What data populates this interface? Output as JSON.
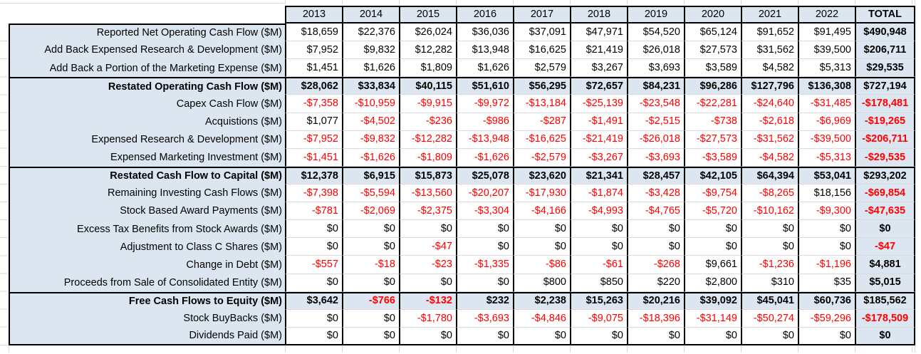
{
  "colors": {
    "accent_fill": "#DCE6F1",
    "negative_text": "#FF0000",
    "border": "#000000",
    "gridline": "#D9D9D9"
  },
  "table": {
    "columns": [
      "2013",
      "2014",
      "2015",
      "2016",
      "2017",
      "2018",
      "2019",
      "2020",
      "2021",
      "2022",
      "TOTAL"
    ],
    "rows": [
      {
        "label": "Reported Net Operating Cash Flow ($M)",
        "bold": false,
        "values": [
          "$18,659",
          "$22,376",
          "$26,024",
          "$36,036",
          "$37,091",
          "$47,971",
          "$54,520",
          "$65,124",
          "$91,652",
          "$91,495",
          "$490,948"
        ]
      },
      {
        "label": "Add Back Expensed Research & Development ($M)",
        "bold": false,
        "values": [
          "$7,952",
          "$9,832",
          "$12,282",
          "$13,948",
          "$16,625",
          "$21,419",
          "$26,018",
          "$27,573",
          "$31,562",
          "$39,500",
          "$206,711"
        ]
      },
      {
        "label": "Add Back a Portion of the Marketing Expense ($M)",
        "bold": false,
        "values": [
          "$1,451",
          "$1,626",
          "$1,809",
          "$1,626",
          "$2,579",
          "$3,267",
          "$3,693",
          "$3,589",
          "$4,582",
          "$5,313",
          "$29,535"
        ]
      },
      {
        "label": "Restated Operating Cash Flow ($M)",
        "bold": true,
        "values": [
          "$28,062",
          "$33,834",
          "$40,115",
          "$51,610",
          "$56,295",
          "$72,657",
          "$84,231",
          "$96,286",
          "$127,796",
          "$136,308",
          "$727,194"
        ]
      },
      {
        "label": "Capex Cash Flow ($M)",
        "bold": false,
        "values": [
          "-$7,358",
          "-$10,959",
          "-$9,915",
          "-$9,972",
          "-$13,184",
          "-$25,139",
          "-$23,548",
          "-$22,281",
          "-$24,640",
          "-$31,485",
          "-$178,481"
        ]
      },
      {
        "label": "Acquistions ($M)",
        "bold": false,
        "values": [
          "$1,077",
          "-$4,502",
          "-$236",
          "-$986",
          "-$287",
          "-$1,491",
          "-$2,515",
          "-$738",
          "-$2,618",
          "-$6,969",
          "-$19,265"
        ]
      },
      {
        "label": "Expensed Research & Development ($M)",
        "bold": false,
        "values": [
          "-$7,952",
          "-$9,832",
          "-$12,282",
          "-$13,948",
          "-$16,625",
          "-$21,419",
          "-$26,018",
          "-$27,573",
          "-$31,562",
          "-$39,500",
          "-$206,711"
        ]
      },
      {
        "label": "Expensed Marketing Investment ($M)",
        "bold": false,
        "values": [
          "-$1,451",
          "-$1,626",
          "-$1,809",
          "-$1,626",
          "-$2,579",
          "-$3,267",
          "-$3,693",
          "-$3,589",
          "-$4,582",
          "-$5,313",
          "-$29,535"
        ]
      },
      {
        "label": "Restated Cash Flow to Capital ($M)",
        "bold": true,
        "values": [
          "$12,378",
          "$6,915",
          "$15,873",
          "$25,078",
          "$23,620",
          "$21,341",
          "$28,457",
          "$42,105",
          "$64,394",
          "$53,041",
          "$293,202"
        ]
      },
      {
        "label": "Remaining Investing Cash Flows ($M)",
        "bold": false,
        "values": [
          "-$7,398",
          "-$5,594",
          "-$13,560",
          "-$20,207",
          "-$17,930",
          "-$1,874",
          "-$3,428",
          "-$9,754",
          "-$8,265",
          "$18,156",
          "-$69,854"
        ]
      },
      {
        "label": "Stock Based Award Payments ($M)",
        "bold": false,
        "values": [
          "-$781",
          "-$2,069",
          "-$2,375",
          "-$3,304",
          "-$4,166",
          "-$4,993",
          "-$4,765",
          "-$5,720",
          "-$10,162",
          "-$9,300",
          "-$47,635"
        ]
      },
      {
        "label": "Excess Tax Benefits from Stock Awards ($M)",
        "bold": false,
        "values": [
          "$0",
          "$0",
          "$0",
          "$0",
          "$0",
          "$0",
          "$0",
          "$0",
          "$0",
          "$0",
          "$0"
        ]
      },
      {
        "label": "Adjustment to Class C Shares ($M)",
        "bold": false,
        "values": [
          "$0",
          "$0",
          "-$47",
          "$0",
          "$0",
          "$0",
          "$0",
          "$0",
          "$0",
          "$0",
          "-$47"
        ]
      },
      {
        "label": "Change in Debt ($M)",
        "bold": false,
        "values": [
          "-$557",
          "-$18",
          "-$23",
          "-$1,335",
          "-$86",
          "-$61",
          "-$268",
          "$9,661",
          "-$1,236",
          "-$1,196",
          "$4,881"
        ]
      },
      {
        "label": "Proceeds from Sale of Consolidated Entity ($M)",
        "bold": false,
        "values": [
          "$0",
          "$0",
          "$0",
          "$0",
          "$800",
          "$850",
          "$220",
          "$2,800",
          "$310",
          "$35",
          "$5,015"
        ]
      },
      {
        "label": "Free Cash Flows to Equity ($M)",
        "bold": true,
        "values": [
          "$3,642",
          "-$766",
          "-$132",
          "$232",
          "$2,238",
          "$15,263",
          "$20,216",
          "$39,092",
          "$45,041",
          "$60,736",
          "$185,562"
        ]
      },
      {
        "label": "Stock BuyBacks ($M)",
        "bold": false,
        "values": [
          "$0",
          "$0",
          "-$1,780",
          "-$3,693",
          "-$4,846",
          "-$9,075",
          "-$18,396",
          "-$31,149",
          "-$50,274",
          "-$59,296",
          "-$178,509"
        ]
      },
      {
        "label": "Dividends Paid ($M)",
        "bold": false,
        "values": [
          "$0",
          "$0",
          "$0",
          "$0",
          "$0",
          "$0",
          "$0",
          "$0",
          "$0",
          "$0",
          "$0"
        ]
      }
    ]
  }
}
